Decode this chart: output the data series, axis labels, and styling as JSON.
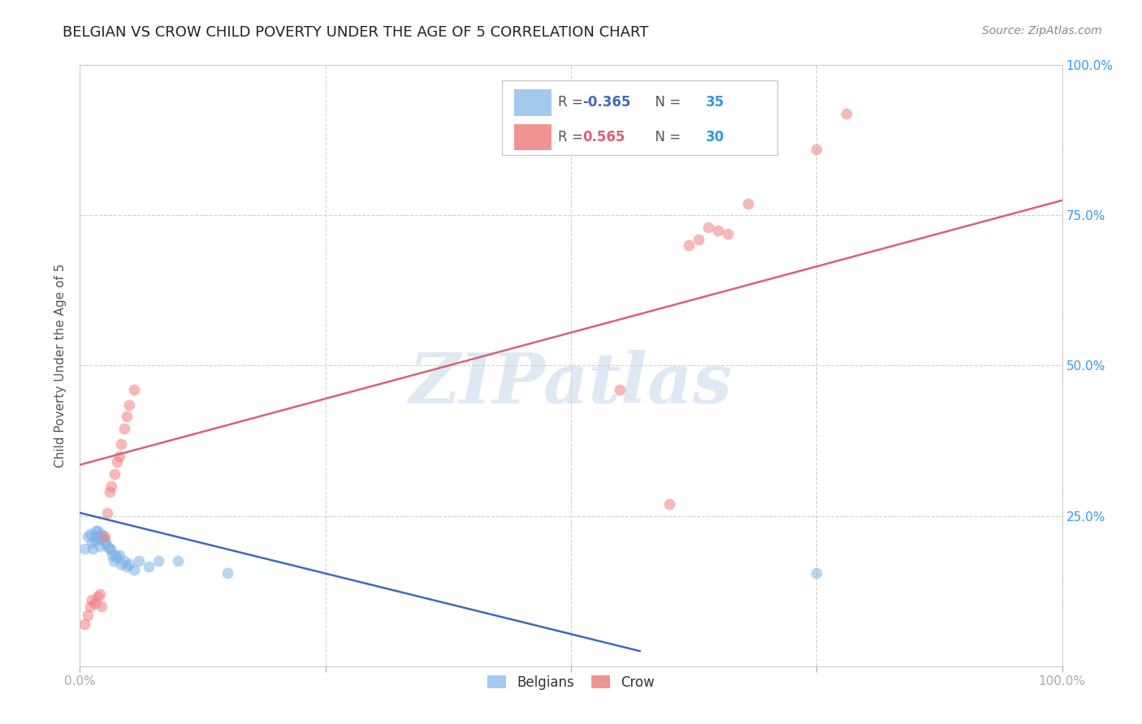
{
  "title": "BELGIAN VS CROW CHILD POVERTY UNDER THE AGE OF 5 CORRELATION CHART",
  "source": "Source: ZipAtlas.com",
  "ylabel": "Child Poverty Under the Age of 5",
  "xlim": [
    0.0,
    1.0
  ],
  "ylim": [
    0.0,
    1.0
  ],
  "legend_r_belgian": "-0.365",
  "legend_n_belgian": "35",
  "legend_r_crow": "0.565",
  "legend_n_crow": "30",
  "belgian_color": "#7eb3e8",
  "crow_color": "#f08080",
  "belgian_line_color": "#4169b8",
  "crow_line_color": "#d9607a",
  "watermark_text": "ZIPatlas",
  "belgians_x": [
    0.005,
    0.008,
    0.01,
    0.012,
    0.013,
    0.015,
    0.015,
    0.016,
    0.017,
    0.018,
    0.02,
    0.021,
    0.022,
    0.023,
    0.025,
    0.026,
    0.028,
    0.03,
    0.031,
    0.033,
    0.034,
    0.036,
    0.038,
    0.04,
    0.042,
    0.045,
    0.048,
    0.05,
    0.055,
    0.06,
    0.07,
    0.08,
    0.1,
    0.15,
    0.75
  ],
  "belgians_y": [
    0.195,
    0.215,
    0.22,
    0.205,
    0.195,
    0.215,
    0.21,
    0.225,
    0.215,
    0.225,
    0.2,
    0.21,
    0.22,
    0.215,
    0.21,
    0.205,
    0.2,
    0.195,
    0.195,
    0.185,
    0.175,
    0.185,
    0.18,
    0.185,
    0.17,
    0.175,
    0.165,
    0.17,
    0.16,
    0.175,
    0.165,
    0.175,
    0.175,
    0.155,
    0.155
  ],
  "crows_x": [
    0.005,
    0.008,
    0.01,
    0.012,
    0.015,
    0.018,
    0.02,
    0.022,
    0.025,
    0.028,
    0.03,
    0.032,
    0.035,
    0.038,
    0.04,
    0.042,
    0.045,
    0.048,
    0.05,
    0.055,
    0.55,
    0.6,
    0.62,
    0.63,
    0.64,
    0.65,
    0.66,
    0.68,
    0.75,
    0.78
  ],
  "crows_y": [
    0.07,
    0.085,
    0.1,
    0.11,
    0.105,
    0.115,
    0.12,
    0.1,
    0.215,
    0.255,
    0.29,
    0.3,
    0.32,
    0.34,
    0.35,
    0.37,
    0.395,
    0.415,
    0.435,
    0.46,
    0.46,
    0.27,
    0.7,
    0.71,
    0.73,
    0.725,
    0.72,
    0.77,
    0.86,
    0.92
  ],
  "belgian_trend_x": [
    0.0,
    0.57
  ],
  "belgian_trend_y": [
    0.255,
    0.025
  ],
  "crow_trend_x": [
    0.0,
    1.0
  ],
  "crow_trend_y": [
    0.335,
    0.775
  ],
  "background_color": "#ffffff",
  "grid_color": "#d0d0d0",
  "tick_color_x": "#aaaaaa",
  "tick_color_y": "#3399ee",
  "title_fontsize": 13,
  "axis_label_fontsize": 11,
  "tick_fontsize": 11,
  "dot_size": 100,
  "dot_alpha": 0.55,
  "line_width": 1.8
}
